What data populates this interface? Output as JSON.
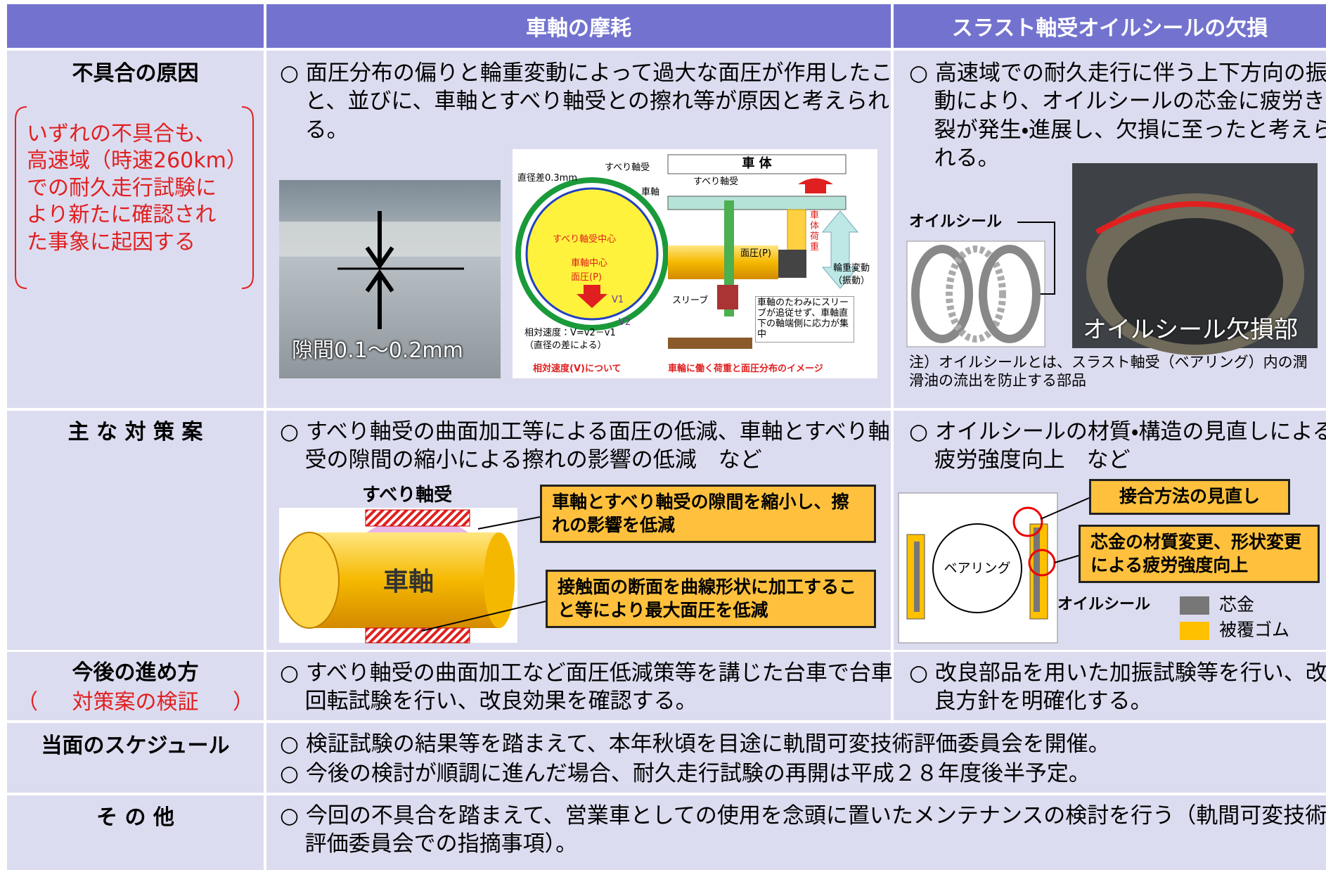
{
  "header": {
    "axle_col": "車軸の摩耗",
    "seal_col": "スラスト軸受オイルシールの欠損"
  },
  "cause": {
    "label": "不具合の原因",
    "note": [
      "いずれの不具合も、",
      "高速域（時速260km）",
      "での耐久走行試験に",
      "より新たに確認され",
      "た事象に起因する"
    ],
    "axle_text": "○ 面圧分布の偏りと輪重変動によって過大な面圧が作用したこと、並びに、車軸とすべり軸受との擦れ等が原因と考えられる。",
    "gap_caption": "隙間0.1～0.2mm",
    "diagram": {
      "diameter_diff": "直径差0.3mm",
      "bearing": "すべり軸受",
      "axle": "車軸",
      "bearing_center": "すべり軸受中心",
      "axle_center": "車軸中心",
      "pressure": "面圧(P)",
      "v1": "V1",
      "v2": "V2",
      "relative_speed": "相対速度：V=v2－v1",
      "by_diameter": "（直径の差による）",
      "relative_title": "相対速度(V)について",
      "body": "車 体",
      "bearing2": "すべり軸受",
      "pressure2": "面圧(P)",
      "sleeve": "スリーブ",
      "body_load": "車体荷重",
      "wheel_load": "輪重変動",
      "vibration": "（振動）",
      "deflection": "車軸のたわみにスリーブが追従せず、車軸直下の軸端側に応力が集中",
      "load_title": "車輪に働く荷重と面圧分布のイメージ"
    },
    "seal_text": "○ 高速域での耐久走行に伴う上下方向の振動により、オイルシールの芯金に疲労き裂が発生・進展し、欠損に至ったと考えられる。",
    "seal_label": "オイルシール",
    "damage_caption": "オイルシール欠損部",
    "seal_note": "注）オイルシールとは、スラスト軸受（ベアリング）内の潤滑油の流出を防止する部品"
  },
  "measures": {
    "label": "主 な 対 策 案",
    "axle_text": "○ すべり軸受の曲面加工等による面圧の低減、車軸とすべり軸受の隙間の縮小による擦れの影響の低減　など",
    "bearing": "すべり軸受",
    "axle": "車軸",
    "callout_gap": "車軸とすべり軸受の隙間を縮小し、擦れの影響を低減",
    "callout_surface": "接触面の断面を曲線形状に加工すること等により最大面圧を低減",
    "seal_text": "○ オイルシールの材質・構造の見直しによる疲労強度向上　など",
    "callout_joint": "接合方法の見直し",
    "callout_core": "芯金の材質変更、形状変更による疲労強度向上",
    "bearing_label": "ベアリング",
    "seal_label": "オイルシール",
    "legend_core": "芯金",
    "legend_rubber": "被覆ゴム"
  },
  "next_steps": {
    "label": "今後の進め方",
    "sublabel": "対策案の検証",
    "axle_text": "○ すべり軸受の曲面加工など面圧低減策等を講じた台車で台車回転試験を行い、改良効果を確認する。",
    "seal_text": "○ 改良部品を用いた加振試験等を行い、改良方針を明確化する。"
  },
  "schedule": {
    "label": "当面のスケジュール",
    "lines": [
      "○ 検証試験の結果等を踏まえて、本年秋頃を目途に軌間可変技術評価委員会を開催。",
      "○ 今後の検討が順調に進んだ場合、耐久走行試験の再開は平成２８年度後半予定。"
    ]
  },
  "other": {
    "label": "そ の 他",
    "text": "○ 今回の不具合を踏まえて、営業車としての使用を念頭に置いたメンテナンスの検討を行う（軌間可変技術評価委員会での指摘事項）。"
  }
}
